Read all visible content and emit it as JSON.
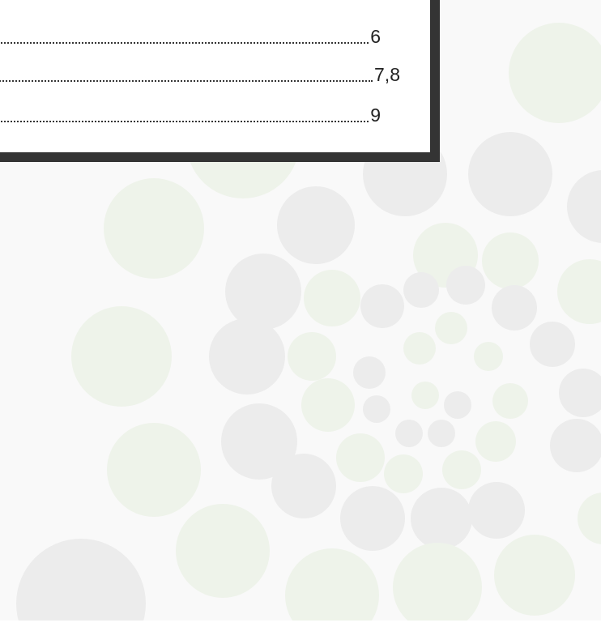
{
  "toc": {
    "entries": [
      {
        "page": "6"
      },
      {
        "page": "7,8"
      },
      {
        "page": "9"
      }
    ]
  }
}
